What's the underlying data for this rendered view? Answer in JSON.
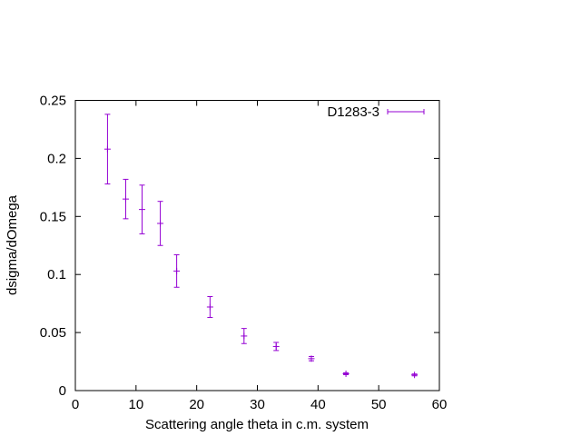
{
  "chart_data": {
    "type": "scatter",
    "title": "",
    "xlabel": "Scattering angle theta in c.m. system",
    "ylabel": "dsigma/dOmega",
    "xlim": [
      0,
      60
    ],
    "ylim": [
      0,
      0.25
    ],
    "xticks": [
      0,
      10,
      20,
      30,
      40,
      50,
      60
    ],
    "yticks": [
      0,
      0.05,
      0.1,
      0.15,
      0.2,
      0.25
    ],
    "xtick_labels": [
      "0",
      "10",
      "20",
      "30",
      "40",
      "50",
      "60"
    ],
    "ytick_labels": [
      "0",
      "0.05",
      "0.1",
      "0.15",
      "0.2",
      "0.25"
    ],
    "grid": false,
    "legend_position": "top-right",
    "color": "#9400d3",
    "series": [
      {
        "name": "D1283-3",
        "points": [
          {
            "x": 5.3,
            "y": 0.208,
            "err": 0.03
          },
          {
            "x": 8.3,
            "y": 0.165,
            "err": 0.017
          },
          {
            "x": 11.0,
            "y": 0.156,
            "err": 0.021
          },
          {
            "x": 14.0,
            "y": 0.144,
            "err": 0.019
          },
          {
            "x": 16.7,
            "y": 0.103,
            "err": 0.014
          },
          {
            "x": 22.2,
            "y": 0.072,
            "err": 0.009
          },
          {
            "x": 27.8,
            "y": 0.047,
            "err": 0.0065
          },
          {
            "x": 33.1,
            "y": 0.038,
            "err": 0.0035
          },
          {
            "x": 38.9,
            "y": 0.0275,
            "err": 0.0018
          },
          {
            "x": 44.6,
            "y": 0.0145,
            "err": 0.0008
          },
          {
            "x": 55.9,
            "y": 0.0135,
            "err": 0.0008
          }
        ]
      }
    ]
  }
}
